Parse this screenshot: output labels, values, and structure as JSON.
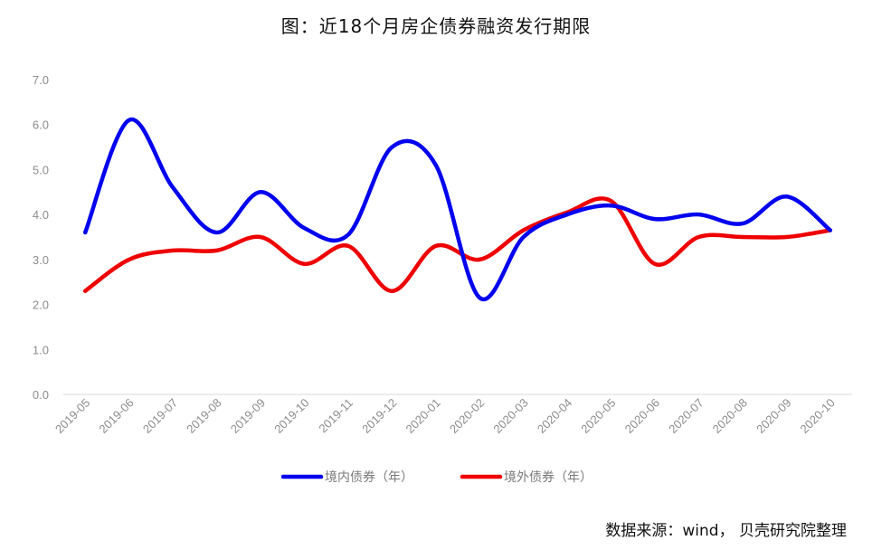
{
  "chart_data": {
    "type": "line",
    "title": "图：近18个月房企债券融资发行期限",
    "source": "数据来源：wind， 贝壳研究院整理",
    "categories": [
      "2019-05",
      "2019-06",
      "2019-07",
      "2019-08",
      "2019-09",
      "2019-10",
      "2019-11",
      "2019-12",
      "2020-01",
      "2020-02",
      "2020-03",
      "2020-04",
      "2020-05",
      "2020-06",
      "2020-07",
      "2020-08",
      "2020-09",
      "2020-10"
    ],
    "y_ticks": [
      "0.0",
      "1.0",
      "2.0",
      "3.0",
      "4.0",
      "5.0",
      "6.0",
      "7.0"
    ],
    "ylim": [
      0,
      7
    ],
    "grid": false,
    "legend_position": "bottom",
    "series": [
      {
        "name": "境内债券（年）",
        "color": "#0000ee",
        "values": [
          3.6,
          6.1,
          4.6,
          3.6,
          4.5,
          3.7,
          3.55,
          5.5,
          5.1,
          2.15,
          3.5,
          4.0,
          4.2,
          3.9,
          4.0,
          3.8,
          4.4,
          3.65
        ]
      },
      {
        "name": "境外债券（年）",
        "color": "#ee0000",
        "values": [
          2.3,
          3.0,
          3.2,
          3.2,
          3.5,
          2.9,
          3.3,
          2.3,
          3.3,
          3.0,
          3.65,
          4.05,
          4.3,
          2.9,
          3.5,
          3.5,
          3.5,
          3.65
        ]
      }
    ]
  }
}
